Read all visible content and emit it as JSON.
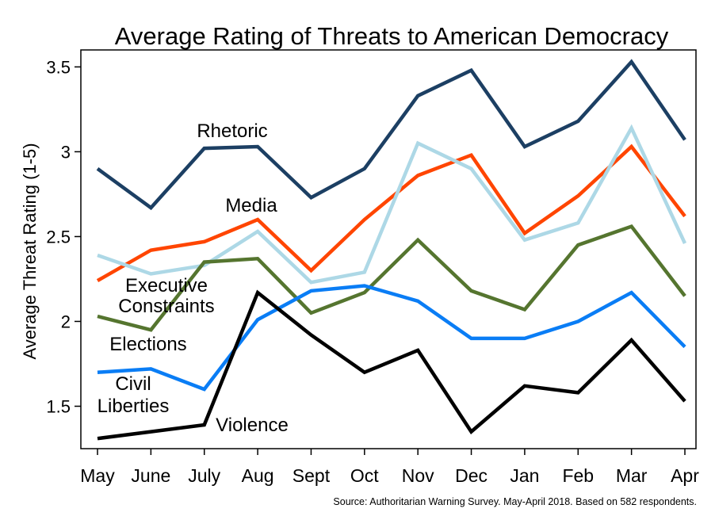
{
  "chart_data": {
    "type": "line",
    "title": "Average Rating of Threats to American Democracy",
    "xlabel": "",
    "ylabel": "Average Threat Rating (1-5)",
    "categories": [
      "May",
      "June",
      "July",
      "Aug",
      "Sept",
      "Oct",
      "Nov",
      "Dec",
      "Jan",
      "Feb",
      "Mar",
      "Apr"
    ],
    "yticks": [
      "1.5",
      "2",
      "2.5",
      "3",
      "3.5"
    ],
    "ylim": [
      1.25,
      3.6
    ],
    "grid": false,
    "legend": "inline annotations",
    "series": [
      {
        "name": "Rhetoric",
        "color": "#1c3f63",
        "values": [
          2.9,
          2.67,
          3.02,
          3.03,
          2.73,
          2.9,
          3.33,
          3.48,
          3.03,
          3.18,
          3.53,
          3.07
        ]
      },
      {
        "name": "Media",
        "color": "#ff4500",
        "values": [
          2.24,
          2.42,
          2.47,
          2.6,
          2.3,
          2.6,
          2.86,
          2.98,
          2.52,
          2.74,
          3.03,
          2.62
        ]
      },
      {
        "name": "Executive Constraints",
        "color": "#add8e6",
        "values": [
          2.39,
          2.28,
          2.33,
          2.53,
          2.23,
          2.29,
          3.05,
          2.9,
          2.48,
          2.58,
          3.14,
          2.46
        ]
      },
      {
        "name": "Elections",
        "color": "#55752f",
        "values": [
          2.03,
          1.95,
          2.35,
          2.37,
          2.05,
          2.17,
          2.48,
          2.18,
          2.07,
          2.45,
          2.56,
          2.15
        ]
      },
      {
        "name": "Civil Liberties",
        "color": "#0a7df5",
        "values": [
          1.7,
          1.72,
          1.6,
          2.01,
          2.18,
          2.21,
          2.12,
          1.9,
          1.9,
          2.0,
          2.17,
          1.85
        ]
      },
      {
        "name": "Violence",
        "color": "#000000",
        "values": [
          1.31,
          1.35,
          1.39,
          2.17,
          1.92,
          1.7,
          1.83,
          1.35,
          1.62,
          1.58,
          1.89,
          1.53
        ]
      }
    ],
    "annotations": [
      {
        "text": "Rhetoric"
      },
      {
        "text": "Media"
      },
      {
        "text": "Executive"
      },
      {
        "text": "Constraints"
      },
      {
        "text": "Elections"
      },
      {
        "text": "Civil"
      },
      {
        "text": "Liberties"
      },
      {
        "text": "Violence"
      }
    ],
    "source": "Source: Authoritarian Warning Survey. May-April 2018. Based on 582 respondents."
  }
}
